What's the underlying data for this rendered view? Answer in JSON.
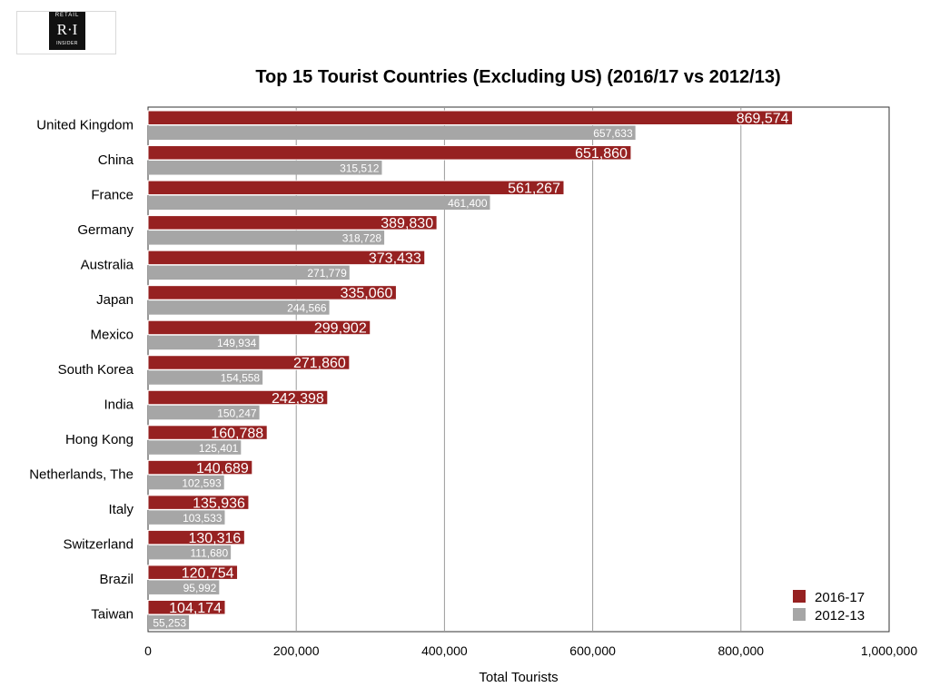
{
  "logo": {
    "top": "RETAIL",
    "mid": "R·I",
    "bottom": "INSIDER"
  },
  "chart_data": {
    "type": "bar",
    "orientation": "horizontal",
    "title": "Top 15 Tourist Countries (Excluding US) (2016/17 vs 2012/13)",
    "xlabel": "Total Tourists",
    "ylabel": "",
    "xlim": [
      0,
      1000000
    ],
    "xticks": [
      0,
      200000,
      400000,
      600000,
      800000,
      1000000
    ],
    "xtick_labels": [
      "0",
      "200,000",
      "400,000",
      "600,000",
      "800,000",
      "1,000,000"
    ],
    "grid": "vertical",
    "legend_position": "bottom-right",
    "categories": [
      "United Kingdom",
      "China",
      "France",
      "Germany",
      "Australia",
      "Japan",
      "Mexico",
      "South Korea",
      "India",
      "Hong Kong",
      "Netherlands, The",
      "Italy",
      "Switzerland",
      "Brazil",
      "Taiwan"
    ],
    "series": [
      {
        "name": "2016-17",
        "color": "#962121",
        "values": [
          869574,
          651860,
          561267,
          389830,
          373433,
          335060,
          299902,
          271860,
          242398,
          160788,
          140689,
          135936,
          130316,
          120754,
          104174
        ],
        "labels": [
          "869,574",
          "651,860",
          "561,267",
          "389,830",
          "373,433",
          "335,060",
          "299,902",
          "271,860",
          "242,398",
          "160,788",
          "140,689",
          "135,936",
          "130,316",
          "120,754",
          "104,174"
        ]
      },
      {
        "name": "2012-13",
        "color": "#a6a6a6",
        "values": [
          657633,
          315512,
          461400,
          318728,
          271779,
          244566,
          149934,
          154558,
          150247,
          125401,
          102593,
          103533,
          111680,
          95992,
          55253
        ],
        "labels": [
          "657,633",
          "315,512",
          "461,400",
          "318,728",
          "271,779",
          "244,566",
          "149,934",
          "154,558",
          "150,247",
          "125,401",
          "102,593",
          "103,533",
          "111,680",
          "95,992",
          "55,253"
        ]
      }
    ]
  }
}
